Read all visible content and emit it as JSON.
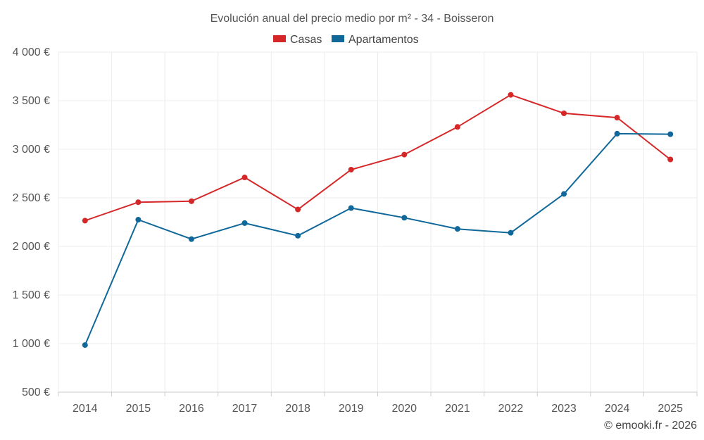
{
  "chart_data": {
    "type": "line",
    "title": "Evolución anual del precio medio por m² - 34 - Boisseron",
    "categories": [
      "2014",
      "2015",
      "2016",
      "2017",
      "2018",
      "2019",
      "2020",
      "2021",
      "2022",
      "2023",
      "2024",
      "2025"
    ],
    "ylim": [
      500,
      4000
    ],
    "yticks": [
      500,
      1000,
      1500,
      2000,
      2500,
      3000,
      3500,
      4000
    ],
    "ytick_labels": [
      "500 €",
      "1 000 €",
      "1 500 €",
      "2 000 €",
      "2 500 €",
      "3 000 €",
      "3 500 €",
      "4 000 €"
    ],
    "grid": true,
    "legend_position": "top-center",
    "series": [
      {
        "name": "Casas",
        "color": "#d62728",
        "values": [
          2265,
          2455,
          2465,
          2710,
          2380,
          2790,
          2945,
          3230,
          3560,
          3370,
          3325,
          2895
        ]
      },
      {
        "name": "Apartamentos",
        "color": "#0f6899",
        "values": [
          985,
          2275,
          2075,
          2240,
          2110,
          2395,
          2295,
          2180,
          2140,
          2540,
          3160,
          3155
        ]
      }
    ],
    "credit": "© emooki.fr - 2026"
  }
}
